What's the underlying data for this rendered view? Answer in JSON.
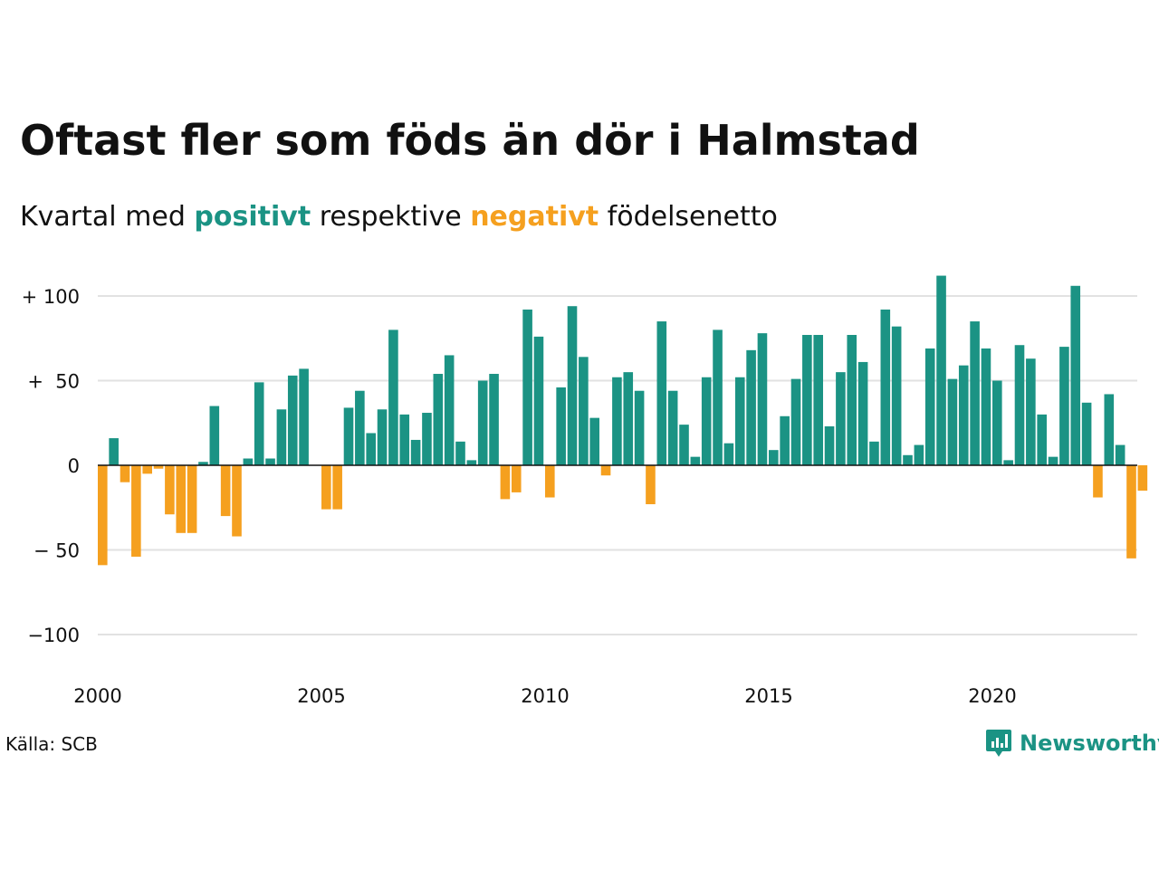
{
  "header": {
    "title": "Oftast fler som föds än dör i Halmstad",
    "subtitle_prefix": "Kvartal med ",
    "subtitle_positive": "positivt",
    "subtitle_middle": " respektive ",
    "subtitle_negative": "negativt",
    "subtitle_suffix": " födelsenetto"
  },
  "footer": {
    "source": "Källa: SCB",
    "brand": "Newsworthy",
    "brand_icon": "newsworthy-logo-icon"
  },
  "colors": {
    "positive": "#1b9384",
    "negative": "#f5a01f",
    "grid": "#e2e2e2",
    "axis": "#111111"
  },
  "chart_data": {
    "type": "bar",
    "title": "Oftast fler som föds än dör i Halmstad",
    "xlabel": "",
    "ylabel": "",
    "ylim": [
      -120,
      120
    ],
    "yticks": [
      {
        "value": 100,
        "label": "+ 100"
      },
      {
        "value": 50,
        "label": "+  50"
      },
      {
        "value": 0,
        "label": "0"
      },
      {
        "value": -50,
        "label": "− 50"
      },
      {
        "value": -100,
        "label": "−100"
      }
    ],
    "xticks": [
      "2000",
      "2005",
      "2010",
      "2015",
      "2020"
    ],
    "grid": true,
    "start_quarter": "2000Q1",
    "values": [
      -59,
      16,
      -10,
      -54,
      -5,
      -2,
      -29,
      -40,
      -40,
      2,
      35,
      -30,
      -42,
      4,
      49,
      4,
      33,
      53,
      57,
      0,
      -26,
      -26,
      34,
      44,
      19,
      33,
      80,
      30,
      15,
      31,
      54,
      65,
      14,
      3,
      50,
      54,
      -20,
      -16,
      92,
      76,
      -19,
      46,
      94,
      64,
      28,
      -6,
      52,
      55,
      44,
      -23,
      85,
      44,
      24,
      5,
      52,
      80,
      13,
      52,
      68,
      78,
      9,
      29,
      51,
      77,
      77,
      23,
      55,
      77,
      61,
      14,
      92,
      82,
      6,
      12,
      69,
      112,
      51,
      59,
      85,
      69,
      50,
      3,
      71,
      63,
      30,
      5,
      70,
      106,
      37,
      -19,
      42,
      12,
      -55,
      -15
    ]
  }
}
